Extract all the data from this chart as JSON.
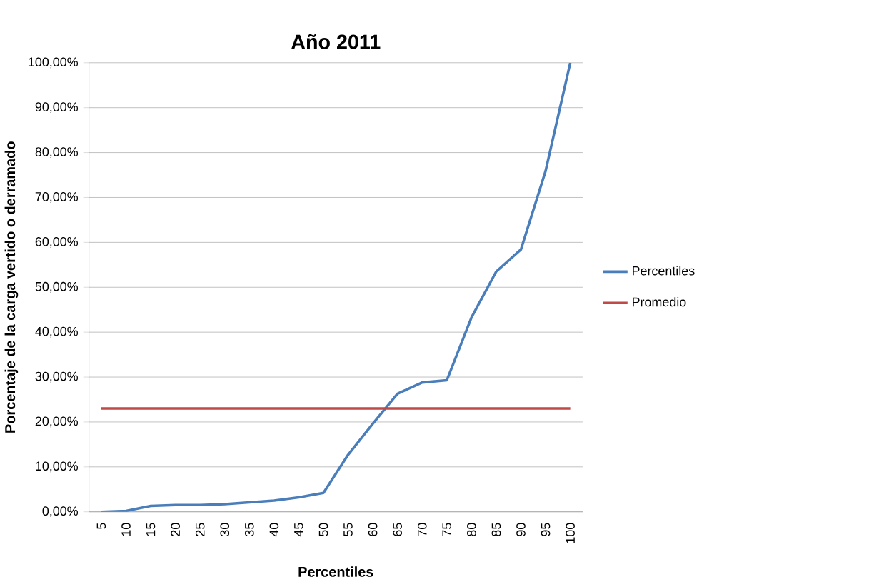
{
  "chart_data": {
    "type": "line",
    "title": "Año 2011",
    "xlabel": "Percentiles",
    "ylabel": "Porcentaje de la carga vertido o derramado",
    "categories": [
      "5",
      "10",
      "15",
      "20",
      "25",
      "30",
      "35",
      "40",
      "45",
      "50",
      "55",
      "60",
      "65",
      "70",
      "75",
      "80",
      "85",
      "90",
      "95",
      "100"
    ],
    "series": [
      {
        "name": "Percentiles",
        "color": "#4a7ebb",
        "values": [
          0.0,
          0.2,
          1.3,
          1.5,
          1.5,
          1.7,
          2.1,
          2.5,
          3.2,
          4.2,
          12.7,
          19.6,
          26.3,
          28.8,
          29.3,
          43.3,
          53.5,
          58.4,
          75.9,
          100
        ]
      },
      {
        "name": "Promedio",
        "color": "#be4b48",
        "values": [
          23.0,
          23.0,
          23.0,
          23.0,
          23.0,
          23.0,
          23.0,
          23.0,
          23.0,
          23.0,
          23.0,
          23.0,
          23.0,
          23.0,
          23.0,
          23.0,
          23.0,
          23.0,
          23.0,
          23.0
        ]
      }
    ],
    "ylim": [
      0,
      100
    ],
    "yticks": [
      {
        "value": 0,
        "label": "0,00%"
      },
      {
        "value": 10,
        "label": "10,00%"
      },
      {
        "value": 20,
        "label": "20,00%"
      },
      {
        "value": 30,
        "label": "30,00%"
      },
      {
        "value": 40,
        "label": "40,00%"
      },
      {
        "value": 50,
        "label": "50,00%"
      },
      {
        "value": 60,
        "label": "60,00%"
      },
      {
        "value": 70,
        "label": "70,00%"
      },
      {
        "value": 80,
        "label": "80,00%"
      },
      {
        "value": 90,
        "label": "90,00%"
      },
      {
        "value": 100,
        "label": "100,00%"
      }
    ],
    "grid": "y",
    "legend": "right",
    "marker": "none",
    "line_style": "solid"
  }
}
